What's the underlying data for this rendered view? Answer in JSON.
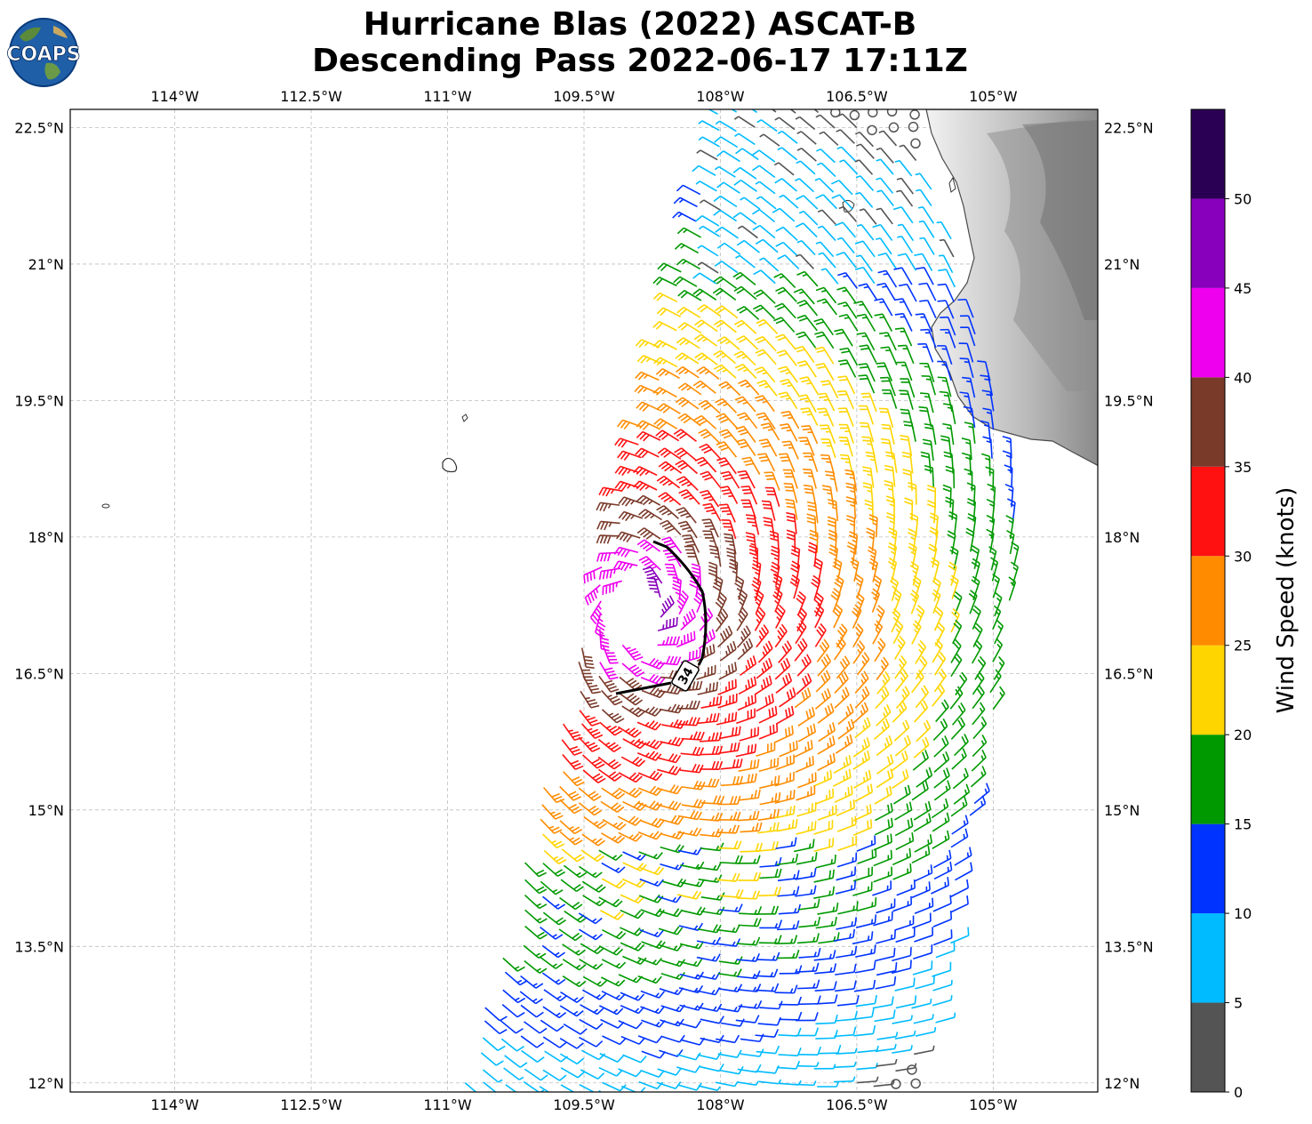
{
  "title": {
    "line1": "Hurricane Blas (2022) ASCAT-B",
    "line2": "Descending Pass 2022-06-17 17:11Z"
  },
  "logo": {
    "text": "COAPS"
  },
  "map": {
    "lon_labels": [
      "114°W",
      "112.5°W",
      "111°W",
      "109.5°W",
      "108°W",
      "106.5°W",
      "105°W"
    ],
    "lon_values": [
      -114,
      -112.5,
      -111,
      -109.5,
      -108,
      -106.5,
      -105
    ],
    "lat_labels": [
      "22.5°N",
      "21°N",
      "19.5°N",
      "18°N",
      "16.5°N",
      "15°N",
      "13.5°N",
      "12°N"
    ],
    "lat_values": [
      22.5,
      21,
      19.5,
      18,
      16.5,
      15,
      13.5,
      12
    ],
    "lon_range": [
      -115.15,
      -103.85
    ],
    "lat_range": [
      11.9,
      22.7
    ],
    "gridlines": true,
    "storm_center": {
      "lon": -108.85,
      "lat": 17.2
    },
    "r34_label": "34"
  },
  "colorbar": {
    "label": "Wind Speed (knots)",
    "ticks": [
      "0",
      "5",
      "10",
      "15",
      "20",
      "25",
      "30",
      "35",
      "40",
      "45",
      "50"
    ],
    "bounds": [
      0,
      5,
      10,
      15,
      20,
      25,
      30,
      35,
      40,
      45,
      50,
      55
    ],
    "colors": [
      "#545454",
      "#00bbff",
      "#0033ff",
      "#009900",
      "#ffd500",
      "#ff8c00",
      "#ff1111",
      "#7a3a2a",
      "#ee00ee",
      "#8800bb",
      "#2a0055"
    ]
  }
}
